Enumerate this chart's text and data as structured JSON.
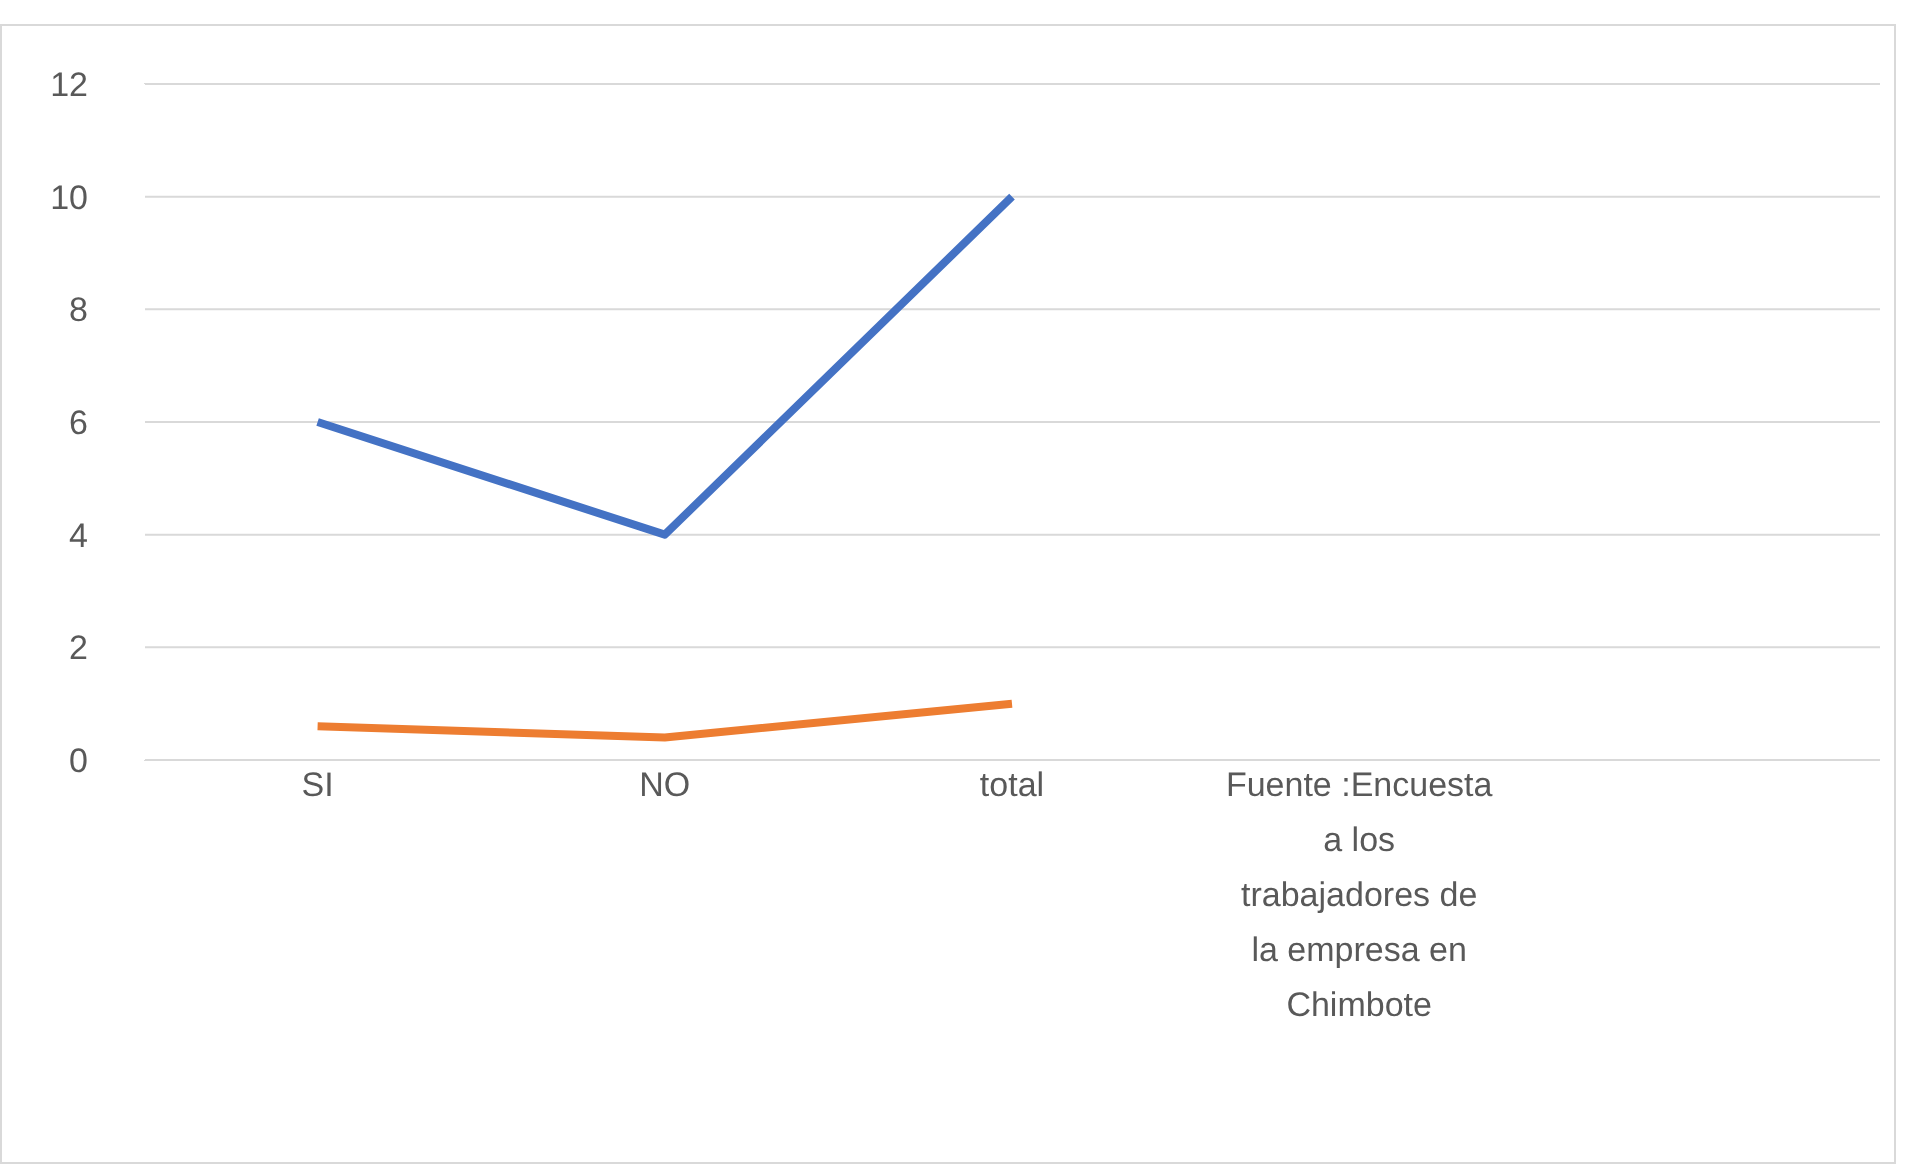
{
  "chart_data": {
    "type": "line",
    "categories": [
      "SI",
      "NO",
      "total",
      "Fuente :Encuesta a los trabajadores de la empresa en Chimbote",
      null
    ],
    "series": [
      {
        "color": "#4472c4",
        "values": [
          6,
          4,
          10,
          null,
          null
        ]
      },
      {
        "color": "#ed7d31",
        "values": [
          0.6,
          0.4,
          1,
          null,
          null
        ]
      }
    ],
    "ylim": [
      0,
      12
    ],
    "yticks": [
      0,
      2,
      4,
      6,
      8,
      10,
      12
    ],
    "grid": "y",
    "legend": false,
    "marker": "none",
    "line_style": "solid"
  }
}
